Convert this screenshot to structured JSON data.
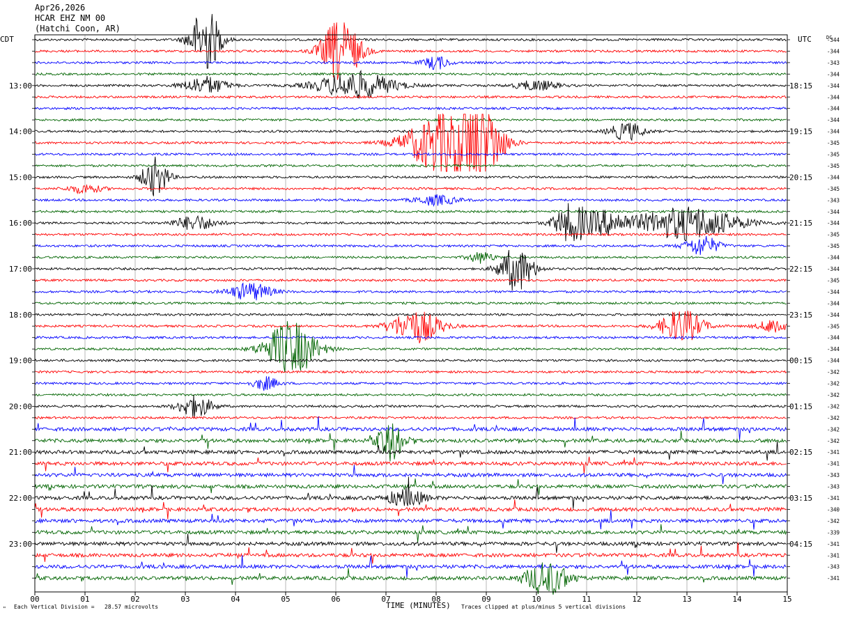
{
  "header": {
    "date": "Apr26,2026",
    "channel": "HCAR EHZ NM 00",
    "location": "(Hatchi Coon, AR)"
  },
  "left_tz": "CDT",
  "right_tz": "UTC",
  "dc_label": "DC",
  "footer": {
    "left": "Each Vertical Division =   28.57 microvolts",
    "right": "Traces clipped at plus/minus 5 vertical divisions",
    "corner_mark": "\""
  },
  "colors": {
    "black": "#000000",
    "red": "#ff0000",
    "blue": "#0000ff",
    "green": "#006400",
    "grid": "#888888"
  },
  "chart_data": {
    "type": "line",
    "title": "",
    "xlabel": "TIME (MINUTES)",
    "ylabel": "",
    "xlim": [
      0,
      15
    ],
    "x_ticks": [
      "00",
      "01",
      "02",
      "03",
      "04",
      "05",
      "06",
      "07",
      "08",
      "09",
      "10",
      "11",
      "12",
      "13",
      "14",
      "15"
    ],
    "trace_colors_cycle": [
      "black",
      "red",
      "blue",
      "green"
    ],
    "left_hour_labels": [
      {
        "row": 4,
        "label": "13:00"
      },
      {
        "row": 8,
        "label": "14:00"
      },
      {
        "row": 12,
        "label": "15:00"
      },
      {
        "row": 16,
        "label": "16:00"
      },
      {
        "row": 20,
        "label": "17:00"
      },
      {
        "row": 24,
        "label": "18:00"
      },
      {
        "row": 28,
        "label": "19:00"
      },
      {
        "row": 32,
        "label": "20:00"
      },
      {
        "row": 36,
        "label": "21:00"
      },
      {
        "row": 40,
        "label": "22:00"
      },
      {
        "row": 44,
        "label": "23:00"
      }
    ],
    "right_hour_labels": [
      {
        "row": 4,
        "label": "18:15"
      },
      {
        "row": 8,
        "label": "19:15"
      },
      {
        "row": 12,
        "label": "20:15"
      },
      {
        "row": 16,
        "label": "21:15"
      },
      {
        "row": 20,
        "label": "22:15"
      },
      {
        "row": 24,
        "label": "23:15"
      },
      {
        "row": 28,
        "label": "00:15"
      },
      {
        "row": 32,
        "label": "01:15"
      },
      {
        "row": 36,
        "label": "02:15"
      },
      {
        "row": 40,
        "label": "03:15"
      },
      {
        "row": 44,
        "label": "04:15"
      }
    ],
    "dc_offsets": [
      "-344",
      "-344",
      "-343",
      "-344",
      "-344",
      "-344",
      "-344",
      "-344",
      "-344",
      "-345",
      "-345",
      "-345",
      "-344",
      "-345",
      "-343",
      "-344",
      "-344",
      "-345",
      "-345",
      "-344",
      "-344",
      "-345",
      "-344",
      "-344",
      "-344",
      "-345",
      "-344",
      "-344",
      "-344",
      "-342",
      "-342",
      "-342",
      "-342",
      "-342",
      "-342",
      "-342",
      "-341",
      "-341",
      "-343",
      "-343",
      "-341",
      "-340",
      "-342",
      "-339",
      "-341",
      "-341",
      "-343",
      "-341"
    ],
    "rows": 48,
    "events": [
      {
        "row": 0,
        "minute": 3.4,
        "amp": 6,
        "width": 0.35
      },
      {
        "row": 1,
        "minute": 6.1,
        "amp": 6,
        "width": 0.45
      },
      {
        "row": 2,
        "minute": 8.0,
        "amp": 1.2,
        "width": 0.3
      },
      {
        "row": 4,
        "minute": 3.4,
        "amp": 1.6,
        "width": 0.5
      },
      {
        "row": 4,
        "minute": 6.4,
        "amp": 2.5,
        "width": 0.9
      },
      {
        "row": 4,
        "minute": 10.0,
        "amp": 0.9,
        "width": 0.5
      },
      {
        "row": 8,
        "minute": 11.8,
        "amp": 1.6,
        "width": 0.4
      },
      {
        "row": 9,
        "minute": 8.2,
        "amp": 6,
        "width": 0.9
      },
      {
        "row": 9,
        "minute": 8.9,
        "amp": 6,
        "width": 0.5
      },
      {
        "row": 12,
        "minute": 2.4,
        "amp": 3.5,
        "width": 0.3
      },
      {
        "row": 13,
        "minute": 1.0,
        "amp": 0.8,
        "width": 0.4
      },
      {
        "row": 14,
        "minute": 8.0,
        "amp": 0.9,
        "width": 0.5
      },
      {
        "row": 16,
        "minute": 3.2,
        "amp": 1.3,
        "width": 0.5
      },
      {
        "row": 16,
        "minute": 10.7,
        "amp": 3.5,
        "width": 0.4
      },
      {
        "row": 16,
        "minute": 11.4,
        "amp": 2.0,
        "width": 0.5
      },
      {
        "row": 16,
        "minute": 13.0,
        "amp": 3.0,
        "width": 1.2
      },
      {
        "row": 18,
        "minute": 13.3,
        "amp": 1.8,
        "width": 0.4
      },
      {
        "row": 19,
        "minute": 8.9,
        "amp": 1.0,
        "width": 0.3
      },
      {
        "row": 20,
        "minute": 9.6,
        "amp": 4.0,
        "width": 0.4
      },
      {
        "row": 22,
        "minute": 4.3,
        "amp": 1.6,
        "width": 0.5
      },
      {
        "row": 25,
        "minute": 7.6,
        "amp": 3.0,
        "width": 0.6
      },
      {
        "row": 25,
        "minute": 12.9,
        "amp": 3.0,
        "width": 0.5
      },
      {
        "row": 25,
        "minute": 14.8,
        "amp": 1.5,
        "width": 0.4
      },
      {
        "row": 27,
        "minute": 5.1,
        "amp": 5.0,
        "width": 0.6
      },
      {
        "row": 30,
        "minute": 4.6,
        "amp": 1.2,
        "width": 0.3
      },
      {
        "row": 32,
        "minute": 3.2,
        "amp": 2.0,
        "width": 0.4
      },
      {
        "row": 35,
        "minute": 7.1,
        "amp": 3.5,
        "width": 0.3
      },
      {
        "row": 40,
        "minute": 7.4,
        "amp": 1.8,
        "width": 0.4
      },
      {
        "row": 47,
        "minute": 10.2,
        "amp": 3.0,
        "width": 0.5
      }
    ]
  }
}
